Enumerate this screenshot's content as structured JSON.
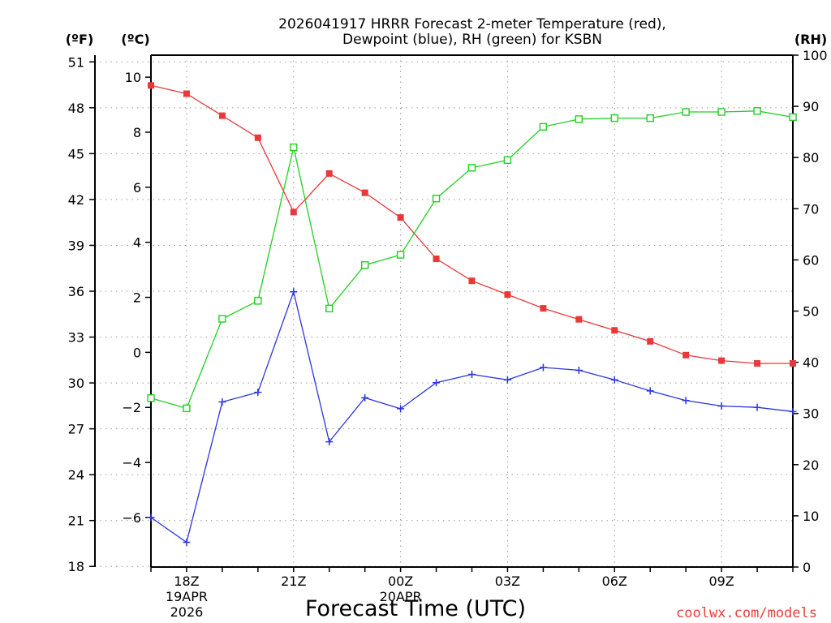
{
  "chart_data": {
    "type": "line",
    "title_line1": "2026041917 HRRR Forecast 2-meter Temperature (red),",
    "title_line2": "Dewpoint (blue), RH (green) for KSBN",
    "xlabel": "Forecast Time (UTC)",
    "credit": "coolwx.com/models",
    "units": {
      "fahrenheit": "(ºF)",
      "celsius": "(ºC)",
      "rh": "(RH)"
    },
    "x_hours": [
      17,
      18,
      19,
      20,
      21,
      22,
      23,
      24,
      25,
      26,
      27,
      28,
      29,
      30,
      31,
      32,
      33,
      34,
      35
    ],
    "x_ticks": [
      {
        "hour": 18,
        "label": "18Z",
        "sub1": "19APR",
        "sub2": "2026"
      },
      {
        "hour": 21,
        "label": "21Z",
        "sub1": "",
        "sub2": ""
      },
      {
        "hour": 24,
        "label": "00Z",
        "sub1": "20APR",
        "sub2": ""
      },
      {
        "hour": 27,
        "label": "03Z",
        "sub1": "",
        "sub2": ""
      },
      {
        "hour": 30,
        "label": "06Z",
        "sub1": "",
        "sub2": ""
      },
      {
        "hour": 33,
        "label": "09Z",
        "sub1": "",
        "sub2": ""
      }
    ],
    "xlim": [
      17,
      35
    ],
    "celsius_axis": {
      "ylim": [
        -7.8,
        10.8
      ],
      "ticks": [
        10,
        8,
        6,
        4,
        2,
        0,
        -2,
        -4,
        -6
      ]
    },
    "fahrenheit_axis": {
      "ticks": [
        51,
        48,
        45,
        42,
        39,
        36,
        33,
        30,
        27,
        24,
        21,
        18
      ]
    },
    "rh_axis": {
      "ylim": [
        0,
        100
      ],
      "ticks": [
        100,
        90,
        80,
        70,
        60,
        50,
        40,
        30,
        20,
        10,
        0
      ]
    },
    "series": [
      {
        "name": "2-meter Temperature",
        "axis": "celsius",
        "color": "#e8383a",
        "marker": "filled-square",
        "values": [
          9.7,
          9.4,
          8.6,
          7.8,
          5.1,
          6.5,
          5.8,
          4.9,
          3.4,
          2.6,
          2.1,
          1.6,
          1.2,
          0.8,
          0.4,
          -0.1,
          -0.3,
          -0.4,
          -0.4
        ]
      },
      {
        "name": "Dewpoint",
        "axis": "celsius",
        "color": "#2a35dd",
        "marker": "plus",
        "values": [
          -6.0,
          -6.9,
          -1.8,
          -1.45,
          2.2,
          -3.25,
          -1.65,
          -2.05,
          -1.1,
          -0.8,
          -1.0,
          -0.55,
          -0.65,
          -1.0,
          -1.4,
          -1.75,
          -1.95,
          -2.0,
          -2.15
        ]
      },
      {
        "name": "RH",
        "axis": "rh",
        "color": "#1fd01f",
        "marker": "open-square",
        "values": [
          33,
          31,
          48.5,
          52,
          82,
          50.5,
          59,
          61,
          72,
          78,
          79.5,
          86,
          87.5,
          87.7,
          87.7,
          88.9,
          88.9,
          89.1,
          87.9
        ]
      }
    ]
  }
}
